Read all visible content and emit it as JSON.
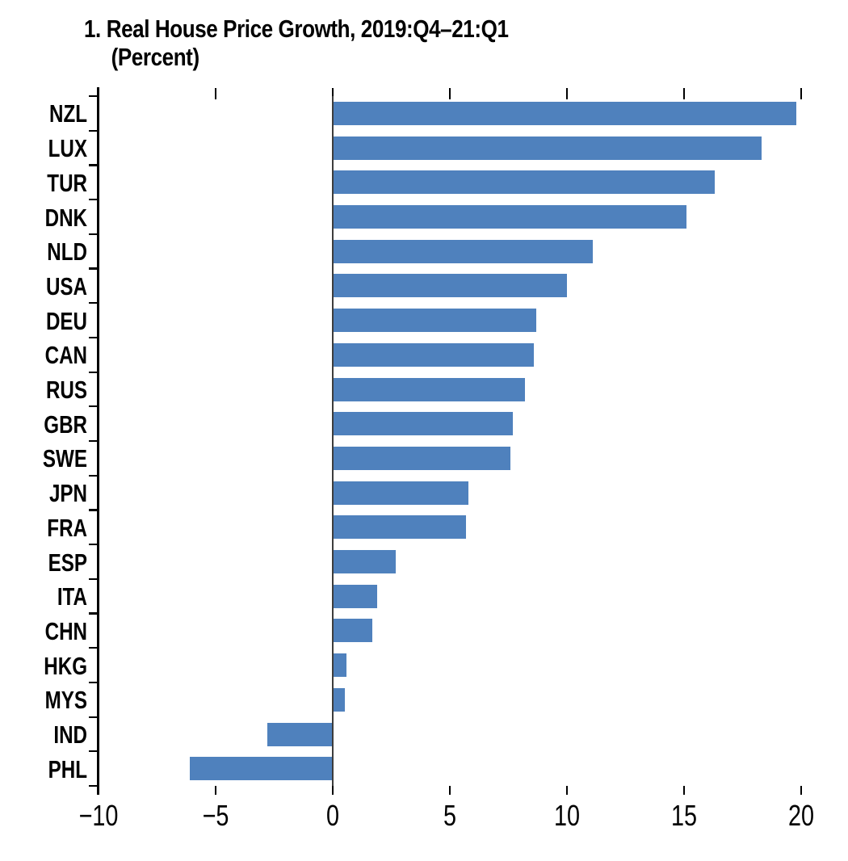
{
  "chart_data": {
    "type": "bar",
    "orientation": "horizontal",
    "title": "1. Real House Price Growth, 2019:Q4–21:Q1",
    "subtitle": "(Percent)",
    "categories": [
      "NZL",
      "LUX",
      "TUR",
      "DNK",
      "NLD",
      "USA",
      "DEU",
      "CAN",
      "RUS",
      "GBR",
      "SWE",
      "JPN",
      "FRA",
      "ESP",
      "ITA",
      "CHN",
      "HKG",
      "MYS",
      "IND",
      "PHL"
    ],
    "values": [
      19.8,
      18.3,
      16.3,
      15.1,
      11.1,
      10.0,
      8.7,
      8.6,
      8.2,
      7.7,
      7.6,
      5.8,
      5.7,
      2.7,
      1.9,
      1.7,
      0.6,
      0.5,
      -2.8,
      -6.1
    ],
    "xlabel": "",
    "ylabel": "",
    "xlim": [
      -10,
      20
    ],
    "x_ticks": [
      {
        "label": "−10",
        "value": -10
      },
      {
        "label": "−5",
        "value": -5
      },
      {
        "label": "0",
        "value": 0
      },
      {
        "label": "5",
        "value": 5
      },
      {
        "label": "10",
        "value": 10
      },
      {
        "label": "15",
        "value": 15
      },
      {
        "label": "20",
        "value": 20
      }
    ],
    "grid": false,
    "legend": "none",
    "bar_color": "#4f81bd",
    "axis_color": "#000000",
    "zero_line_color": "#3d3d3d"
  }
}
